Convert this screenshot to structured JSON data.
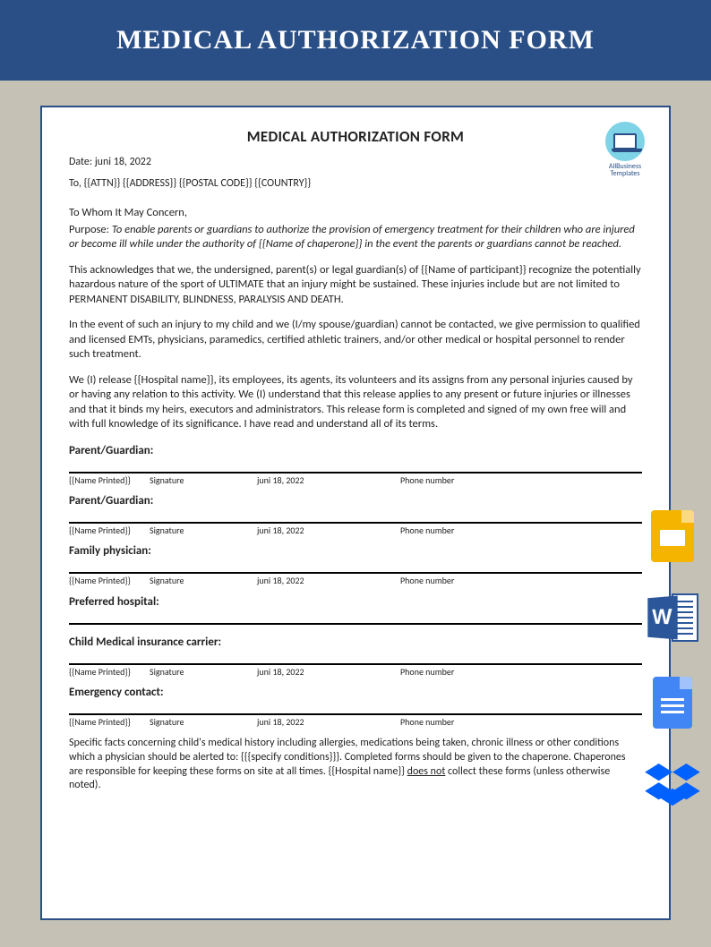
{
  "banner_title": "MEDICAL AUTHORIZATION FORM",
  "doc": {
    "title": "MEDICAL AUTHORIZATION FORM",
    "date_label": "Date:",
    "date_value": "juni 18, 2022",
    "to_line": "To, {{ATTN}} {{ADDRESS}} {{POSTAL CODE}} {{COUNTRY}}",
    "salutation": "To Whom It May Concern,",
    "purpose_label": "Purpose:",
    "purpose_text": "To enable parents or guardians to authorize the provision of emergency treatment for their children who are injured or become ill while under the authority of {{Name of chaperone}} in the event the parents or guardians cannot be reached.",
    "para1": "This acknowledges that we, the undersigned, parent(s) or legal guardian(s) of {{Name of participant}} recognize the potentially hazardous nature of the sport of ULTIMATE that an injury might be sustained. These injuries include but are not limited to PERMANENT DISABILITY, BLINDNESS, PARALYSIS AND DEATH.",
    "para2": "In the event of such an injury to my child and we (I/my spouse/guardian) cannot be contacted, we give permission to qualified and licensed EMTs, physicians, paramedics, certified athletic trainers, and/or other medical or hospital personnel to render such treatment.",
    "para3": "We (I) release {{Hospital name}}, its employees, its agents, its volunteers and its assigns from any personal injuries caused by or having any relation to this activity. We (I) understand that this release applies to any present or future injuries or illnesses and that it binds my heirs, executors and administrators. This release form is completed and signed of my own free will and with full knowledge of its significance. I have read and understand all of its terms.",
    "sig_headers": {
      "name": "{{Name Printed}}",
      "signature": "Signature",
      "date": "juni 18, 2022",
      "phone": "Phone number"
    },
    "sections": [
      {
        "label": "Parent/Guardian:",
        "row": true
      },
      {
        "label": "Parent/Guardian:",
        "row": true
      },
      {
        "label": "Family physician:",
        "row": true
      },
      {
        "label": "Preferred hospital:",
        "row": false
      },
      {
        "label": "Child Medical insurance carrier:",
        "row": true
      },
      {
        "label": "Emergency contact:",
        "row": true
      }
    ],
    "footer_pre": "Specific facts concerning child's medical history including allergies, medications being taken, chronic illness or other conditions which a physician should be alerted to: {{{specify conditions}}}. Completed forms should be given to the chaperone. Chaperones are responsible for keeping these forms on site at all times. {{Hospital name}} ",
    "footer_underlined": "does not",
    "footer_post": " collect these forms (unless otherwise noted)."
  },
  "logo": {
    "line1": "AllBusiness",
    "line2": "Templates"
  },
  "colors": {
    "banner_bg": "#2a4f87",
    "page_bg": "#c5c1b4",
    "doc_border": "#2a4f87",
    "slides": "#f4b400",
    "word": "#2b579a",
    "gdocs": "#4285f4",
    "dropbox": "#0061ff"
  },
  "side_icons": [
    "google-slides-icon",
    "ms-word-icon",
    "google-docs-icon",
    "dropbox-icon"
  ]
}
